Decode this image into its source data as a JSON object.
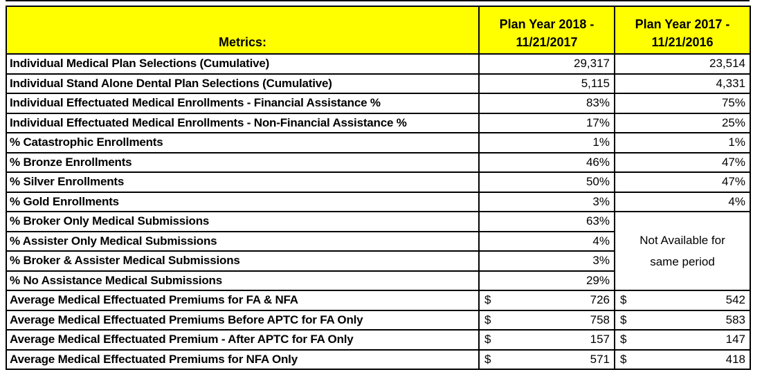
{
  "colors": {
    "header_bg": "#ffff00",
    "border": "#000000",
    "text": "#000000",
    "page_bg": "#ffffff"
  },
  "table": {
    "header": {
      "metrics": "Metrics:",
      "col_2018_line1": "Plan Year 2018 -",
      "col_2018_line2": "11/21/2017",
      "col_2017_line1": "Plan Year 2017 -",
      "col_2017_line2": "11/21/2016"
    },
    "currency_symbol": "$",
    "not_available": {
      "line1": "Not Available for",
      "line2": "same period"
    },
    "rows": [
      {
        "label": "Individual Medical Plan Selections (Cumulative)",
        "y2018": "29,317",
        "y2017": "23,514",
        "format": "number"
      },
      {
        "label": "Individual Stand Alone Dental Plan Selections (Cumulative)",
        "y2018": "5,115",
        "y2017": "4,331",
        "format": "number"
      },
      {
        "label": "Individual Effectuated Medical Enrollments - Financial Assistance %",
        "y2018": "83%",
        "y2017": "75%",
        "format": "percent"
      },
      {
        "label": "Individual Effectuated Medical Enrollments - Non-Financial Assistance %",
        "y2018": "17%",
        "y2017": "25%",
        "format": "percent"
      },
      {
        "label": "% Catastrophic Enrollments",
        "y2018": "1%",
        "y2017": "1%",
        "format": "percent"
      },
      {
        "label": "% Bronze Enrollments",
        "y2018": "46%",
        "y2017": "47%",
        "format": "percent"
      },
      {
        "label": "% Silver Enrollments",
        "y2018": "50%",
        "y2017": "47%",
        "format": "percent"
      },
      {
        "label": "% Gold Enrollments",
        "y2018": "3%",
        "y2017": "4%",
        "format": "percent"
      },
      {
        "label": "% Broker Only Medical Submissions",
        "y2018": "63%",
        "y2017": null,
        "format": "percent"
      },
      {
        "label": "% Assister Only Medical Submissions",
        "y2018": "4%",
        "y2017": null,
        "format": "percent"
      },
      {
        "label": "% Broker & Assister Medical Submissions",
        "y2018": "3%",
        "y2017": null,
        "format": "percent"
      },
      {
        "label": "% No Assistance Medical Submissions",
        "y2018": "29%",
        "y2017": null,
        "format": "percent"
      },
      {
        "label": "Average Medical Effectuated Premiums for FA & NFA",
        "y2018": "726",
        "y2017": "542",
        "format": "currency"
      },
      {
        "label": "Average Medical Effectuated Premiums Before APTC for FA Only",
        "y2018": "758",
        "y2017": "583",
        "format": "currency"
      },
      {
        "label": "Average Medical Effectuated Premium - After APTC for FA Only",
        "y2018": "157",
        "y2017": "147",
        "format": "currency"
      },
      {
        "label": "Average Medical Effectuated Premiums for NFA Only",
        "y2018": "571",
        "y2017": "418",
        "format": "currency"
      }
    ]
  }
}
